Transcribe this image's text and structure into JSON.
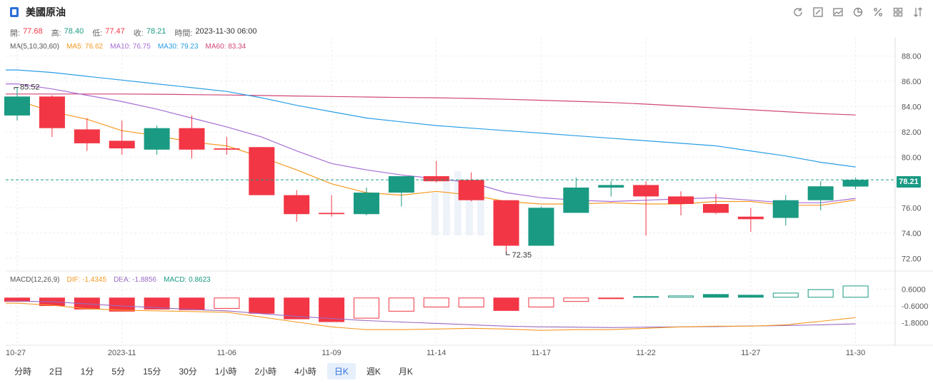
{
  "header": {
    "title": "美國原油"
  },
  "toolbar": [
    "refresh-icon",
    "draw-icon",
    "image-icon",
    "pie-icon",
    "percent-icon",
    "grid-icon",
    "sort-icon"
  ],
  "ohlc": {
    "open_label": "開:",
    "open": "77.68",
    "high_label": "高:",
    "high": "78.40",
    "low_label": "低:",
    "low": "77.47",
    "close_label": "收:",
    "close": "78.21",
    "time_label": "時間:",
    "time": "2023-11-30 06:00"
  },
  "ma_legend": {
    "label": "MA(5,10,30,60)",
    "ma5": "MA5: 76.62",
    "ma10": "MA10: 76.75",
    "ma30": "MA30: 79.23",
    "ma60": "MA60: 83.34"
  },
  "macd_legend": {
    "label": "MACD(12,26,9)",
    "dif": "DIF: -1.4345",
    "dea": "DEA: -1.8856",
    "macd": "MACD: 0.8623"
  },
  "current_price": "78.21",
  "high_mark": "85.52",
  "low_mark": "72.35",
  "colors": {
    "up": "#1a9a83",
    "down": "#f23645",
    "ma5": "#f59a23",
    "ma10": "#a66dd4",
    "ma30": "#2a9ee6",
    "ma60": "#d0457a",
    "dif": "#f59a23",
    "dea": "#9a6ac0"
  },
  "periods": [
    "分時",
    "2日",
    "1分",
    "5分",
    "15分",
    "30分",
    "1小時",
    "2小時",
    "4小時",
    "日K",
    "週K",
    "月K"
  ],
  "active_period": "日K",
  "chart_data": [
    {
      "type": "candlestick",
      "title": "美國原油",
      "y_ticks": [
        "88.00",
        "86.00",
        "84.00",
        "82.00",
        "80.00",
        "78.00",
        "76.00",
        "74.00",
        "72.00"
      ],
      "ylim": [
        71.0,
        89.5
      ],
      "x_tick_labels": [
        "10-27",
        "2023-11",
        "11-06",
        "11-09",
        "11-14",
        "11-17",
        "11-22",
        "11-27",
        "11-30"
      ],
      "x_tick_index": [
        0,
        3,
        6,
        9,
        12,
        15,
        18,
        21,
        24
      ],
      "candles": [
        {
          "o": 83.3,
          "h": 85.5,
          "l": 82.9,
          "c": 84.8
        },
        {
          "o": 84.8,
          "h": 84.9,
          "l": 81.6,
          "c": 82.3
        },
        {
          "o": 82.2,
          "h": 83.1,
          "l": 80.5,
          "c": 81.1
        },
        {
          "o": 81.3,
          "h": 82.9,
          "l": 80.2,
          "c": 80.7
        },
        {
          "o": 80.6,
          "h": 82.5,
          "l": 80.2,
          "c": 82.3
        },
        {
          "o": 82.3,
          "h": 83.3,
          "l": 79.9,
          "c": 80.6
        },
        {
          "o": 80.7,
          "h": 81.6,
          "l": 80.2,
          "c": 80.6
        },
        {
          "o": 80.8,
          "h": 80.8,
          "l": 77.0,
          "c": 77.0
        },
        {
          "o": 77.0,
          "h": 77.4,
          "l": 74.9,
          "c": 75.5
        },
        {
          "o": 75.6,
          "h": 77.0,
          "l": 75.3,
          "c": 75.5
        },
        {
          "o": 75.5,
          "h": 77.6,
          "l": 75.4,
          "c": 77.2
        },
        {
          "o": 77.2,
          "h": 78.4,
          "l": 76.1,
          "c": 78.5
        },
        {
          "o": 78.5,
          "h": 79.7,
          "l": 78.0,
          "c": 78.1
        },
        {
          "o": 78.2,
          "h": 78.8,
          "l": 76.5,
          "c": 76.6
        },
        {
          "o": 76.6,
          "h": 76.6,
          "l": 72.35,
          "c": 73.0
        },
        {
          "o": 73.0,
          "h": 76.1,
          "l": 73.0,
          "c": 76.0
        },
        {
          "o": 75.6,
          "h": 78.4,
          "l": 75.6,
          "c": 77.6
        },
        {
          "o": 77.6,
          "h": 78.1,
          "l": 76.9,
          "c": 77.8
        },
        {
          "o": 77.8,
          "h": 78.1,
          "l": 73.8,
          "c": 76.9
        },
        {
          "o": 76.9,
          "h": 77.3,
          "l": 75.4,
          "c": 76.3
        },
        {
          "o": 76.3,
          "h": 77.1,
          "l": 75.5,
          "c": 75.6
        },
        {
          "o": 75.3,
          "h": 76.0,
          "l": 74.1,
          "c": 75.1
        },
        {
          "o": 75.2,
          "h": 77.0,
          "l": 74.6,
          "c": 76.6
        },
        {
          "o": 76.6,
          "h": 78.1,
          "l": 75.8,
          "c": 77.7
        },
        {
          "o": 77.68,
          "h": 78.4,
          "l": 77.47,
          "c": 78.21
        }
      ],
      "ma5": [
        84.5,
        83.6,
        83.0,
        82.1,
        81.7,
        81.2,
        80.9,
        80.0,
        79.0,
        77.9,
        77.2,
        77.0,
        77.3,
        77.0,
        76.5,
        76.3,
        76.3,
        76.4,
        76.3,
        76.3,
        76.5,
        76.5,
        76.2,
        76.2,
        76.62
      ],
      "ma10": [
        85.8,
        85.4,
        84.9,
        84.4,
        83.8,
        83.1,
        82.4,
        81.6,
        80.5,
        79.5,
        79.0,
        78.6,
        78.3,
        78.0,
        77.2,
        76.8,
        76.6,
        76.5,
        76.6,
        76.7,
        76.8,
        76.6,
        76.4,
        76.4,
        76.75
      ],
      "ma30": [
        86.9,
        86.7,
        86.4,
        86.1,
        85.8,
        85.5,
        85.2,
        84.7,
        84.1,
        83.6,
        83.1,
        82.8,
        82.5,
        82.3,
        82.1,
        81.9,
        81.7,
        81.5,
        81.3,
        81.1,
        80.9,
        80.5,
        80.1,
        79.6,
        79.23
      ],
      "ma60": [
        85.0,
        85.0,
        85.0,
        85.0,
        84.98,
        84.95,
        84.92,
        84.88,
        84.84,
        84.8,
        84.76,
        84.72,
        84.7,
        84.65,
        84.58,
        84.5,
        84.42,
        84.33,
        84.2,
        84.05,
        83.9,
        83.75,
        83.6,
        83.45,
        83.34
      ]
    },
    {
      "type": "macd",
      "title": "MACD(12,26,9)",
      "y_ticks": [
        "0.6000",
        "-0.6000",
        "-1.8000"
      ],
      "ylim": [
        -2.8,
        1.6
      ],
      "macd": [
        -0.3,
        -0.6,
        -0.85,
        -1.0,
        -0.85,
        -0.9,
        -0.8,
        -1.15,
        -1.55,
        -1.75,
        -1.5,
        -1.0,
        -0.7,
        -0.7,
        -0.95,
        -0.7,
        -0.3,
        -0.1,
        0.1,
        0.15,
        0.25,
        0.2,
        0.35,
        0.6,
        0.8623
      ],
      "dif": [
        -0.4,
        -0.55,
        -0.8,
        -0.9,
        -0.95,
        -1.0,
        -1.05,
        -1.4,
        -1.75,
        -2.1,
        -2.3,
        -2.3,
        -2.25,
        -2.2,
        -2.25,
        -2.35,
        -2.3,
        -2.3,
        -2.2,
        -2.1,
        -2.05,
        -2.05,
        -1.95,
        -1.7,
        -1.4345
      ],
      "dea": [
        -0.25,
        -0.3,
        -0.45,
        -0.6,
        -0.72,
        -0.85,
        -0.95,
        -1.15,
        -1.35,
        -1.5,
        -1.65,
        -1.75,
        -1.85,
        -1.95,
        -2.05,
        -2.1,
        -2.12,
        -2.15,
        -2.12,
        -2.1,
        -2.08,
        -2.04,
        -2.0,
        -1.95,
        -1.8856
      ]
    }
  ]
}
